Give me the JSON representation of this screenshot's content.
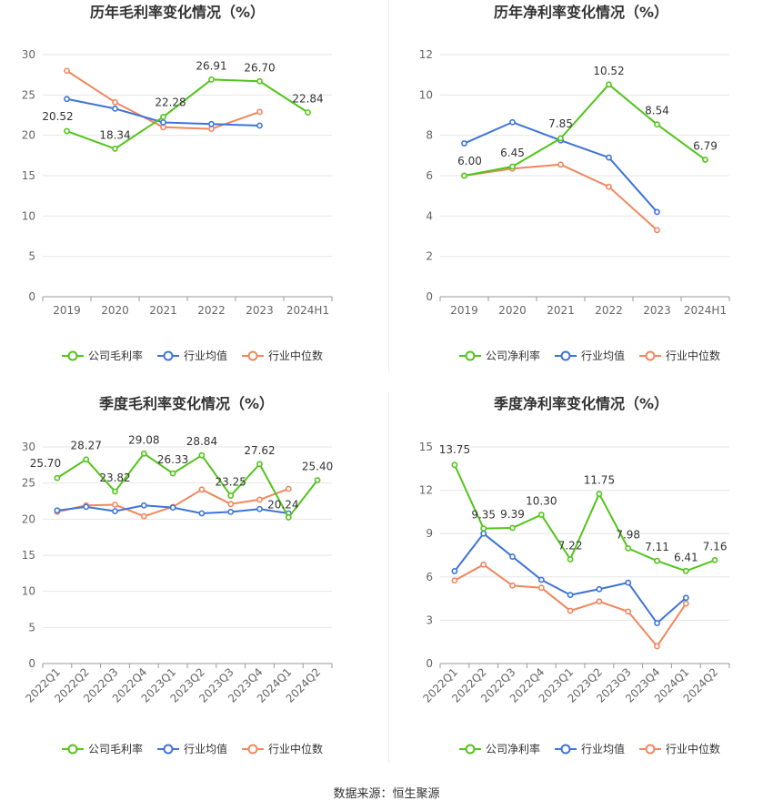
{
  "colors": {
    "company": "#52c41a",
    "avg": "#3d74d9",
    "median": "#f0875f",
    "grid": "#e6e6e6",
    "axis": "#666666",
    "text": "#333333"
  },
  "source_label": "数据来源：恒生聚源",
  "chart_data": [
    {
      "type": "line",
      "title": "历年毛利率变化情况（%）",
      "categories": [
        "2019",
        "2020",
        "2021",
        "2022",
        "2023",
        "2024H1"
      ],
      "ylim": [
        0,
        30
      ],
      "yticks": [
        0,
        5,
        10,
        15,
        20,
        25,
        30
      ],
      "legend_position": "bottom",
      "series": [
        {
          "name": "公司毛利率",
          "color_key": "company",
          "values": [
            20.52,
            18.34,
            22.28,
            26.91,
            26.7,
            22.84
          ],
          "labels": [
            "20.52",
            "18.34",
            "22.28",
            "26.91",
            "26.70",
            "22.84"
          ]
        },
        {
          "name": "行业均值",
          "color_key": "avg",
          "values": [
            24.5,
            23.3,
            21.6,
            21.4,
            21.2,
            null
          ]
        },
        {
          "name": "行业中位数",
          "color_key": "median",
          "values": [
            28.0,
            24.1,
            21.0,
            20.8,
            22.9,
            null
          ]
        }
      ]
    },
    {
      "type": "line",
      "title": "历年净利率变化情况（%）",
      "categories": [
        "2019",
        "2020",
        "2021",
        "2022",
        "2023",
        "2024H1"
      ],
      "ylim": [
        0,
        12
      ],
      "yticks": [
        0,
        2,
        4,
        6,
        8,
        10,
        12
      ],
      "legend_position": "bottom",
      "series": [
        {
          "name": "公司净利率",
          "color_key": "company",
          "values": [
            6.0,
            6.45,
            7.85,
            10.52,
            8.54,
            6.79
          ],
          "labels": [
            "6.00",
            "6.45",
            "7.85",
            "10.52",
            "8.54",
            "6.79"
          ]
        },
        {
          "name": "行业均值",
          "color_key": "avg",
          "values": [
            7.6,
            8.65,
            7.75,
            6.9,
            4.2,
            null
          ]
        },
        {
          "name": "行业中位数",
          "color_key": "median",
          "values": [
            6.0,
            6.35,
            6.55,
            5.45,
            3.3,
            null
          ]
        }
      ]
    },
    {
      "type": "line",
      "title": "季度毛利率变化情况（%）",
      "categories": [
        "2022Q1",
        "2022Q2",
        "2022Q3",
        "2022Q4",
        "2023Q1",
        "2023Q2",
        "2023Q3",
        "2023Q4",
        "2024Q1",
        "2024Q2"
      ],
      "ylim": [
        0,
        30
      ],
      "yticks": [
        0,
        5,
        10,
        15,
        20,
        25,
        30
      ],
      "rotate_x_labels": true,
      "legend_position": "bottom",
      "series": [
        {
          "name": "公司毛利率",
          "color_key": "company",
          "values": [
            25.7,
            28.27,
            23.82,
            29.08,
            26.33,
            28.84,
            23.25,
            27.62,
            20.24,
            25.4
          ],
          "labels": [
            "25.70",
            "28.27",
            "23.82",
            "29.08",
            "26.33",
            "28.84",
            "23.25",
            "27.62",
            "20.24",
            "25.40"
          ]
        },
        {
          "name": "行业均值",
          "color_key": "avg",
          "values": [
            21.2,
            21.7,
            21.1,
            21.9,
            21.6,
            20.8,
            21.0,
            21.4,
            20.8,
            null
          ]
        },
        {
          "name": "行业中位数",
          "color_key": "median",
          "values": [
            21.0,
            21.9,
            22.0,
            20.4,
            21.7,
            24.1,
            22.1,
            22.7,
            24.2,
            null
          ]
        }
      ]
    },
    {
      "type": "line",
      "title": "季度净利率变化情况（%）",
      "categories": [
        "2022Q1",
        "2022Q2",
        "2022Q3",
        "2022Q4",
        "2023Q1",
        "2023Q2",
        "2023Q3",
        "2023Q4",
        "2024Q1",
        "2024Q2"
      ],
      "ylim": [
        0,
        15
      ],
      "yticks": [
        0,
        3,
        6,
        9,
        12,
        15
      ],
      "rotate_x_labels": true,
      "legend_position": "bottom",
      "series": [
        {
          "name": "公司净利率",
          "color_key": "company",
          "values": [
            13.75,
            9.35,
            9.39,
            10.3,
            7.22,
            11.75,
            7.98,
            7.11,
            6.41,
            7.16
          ],
          "labels": [
            "13.75",
            "9.35",
            "9.39",
            "10.30",
            "7.22",
            "11.75",
            "7.98",
            "7.11",
            "6.41",
            "7.16"
          ]
        },
        {
          "name": "行业均值",
          "color_key": "avg",
          "values": [
            6.4,
            9.0,
            7.4,
            5.8,
            4.75,
            5.15,
            5.6,
            2.8,
            4.55,
            null
          ]
        },
        {
          "name": "行业中位数",
          "color_key": "median",
          "values": [
            5.75,
            6.85,
            5.4,
            5.25,
            3.65,
            4.3,
            3.6,
            1.2,
            4.15,
            null
          ]
        }
      ]
    }
  ]
}
